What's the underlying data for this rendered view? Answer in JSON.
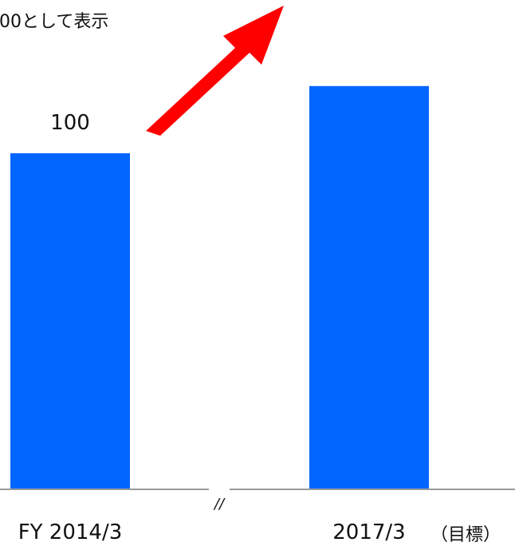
{
  "chart_data": {
    "type": "bar",
    "title_fragment": "00として表示",
    "categories": [
      "FY 2014/3",
      "2017/3"
    ],
    "category_notes": [
      "",
      "（目標）"
    ],
    "values": [
      100,
      120
    ],
    "data_labels": [
      "100",
      ""
    ],
    "axis_break_symbol": "//",
    "colors": {
      "bar": "#0066ff",
      "arrow": "#ff0000",
      "axis": "#9a9a9a"
    }
  }
}
